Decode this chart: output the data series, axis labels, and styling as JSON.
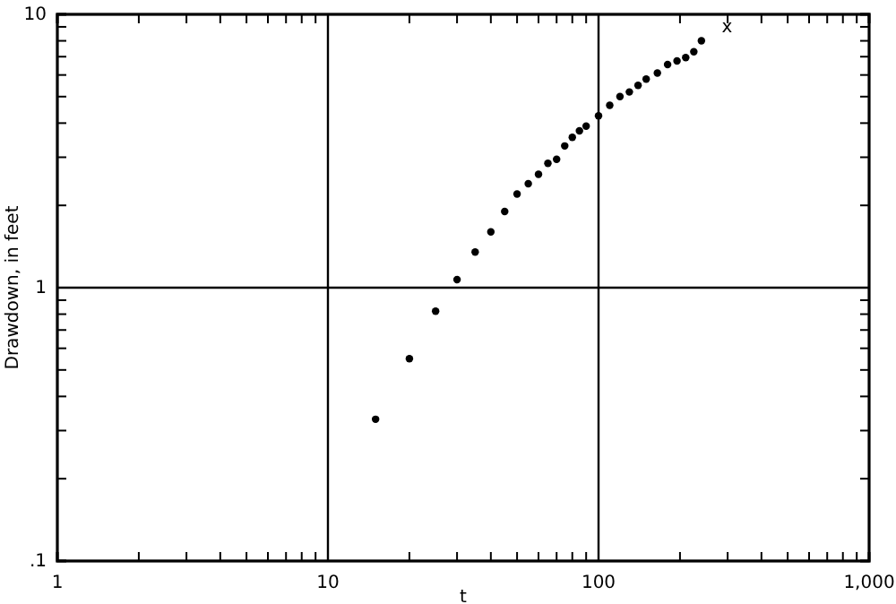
{
  "chart_data": {
    "type": "scatter",
    "xlabel": "t",
    "ylabel": "Drawdown, in feet",
    "log": "xy",
    "grid": true,
    "marker": "circle",
    "xlim": [
      1,
      1000
    ],
    "ylim": [
      0.1,
      10
    ],
    "xticks": [
      {
        "value": 1,
        "label": "1"
      },
      {
        "value": 2,
        "label": null
      },
      {
        "value": 3,
        "label": null
      },
      {
        "value": 4,
        "label": null
      },
      {
        "value": 5,
        "label": null
      },
      {
        "value": 6,
        "label": null
      },
      {
        "value": 7,
        "label": null
      },
      {
        "value": 8,
        "label": null
      },
      {
        "value": 9,
        "label": null
      },
      {
        "value": 10,
        "label": "10"
      },
      {
        "value": 20,
        "label": null
      },
      {
        "value": 30,
        "label": null
      },
      {
        "value": 40,
        "label": null
      },
      {
        "value": 50,
        "label": null
      },
      {
        "value": 60,
        "label": null
      },
      {
        "value": 70,
        "label": null
      },
      {
        "value": 80,
        "label": null
      },
      {
        "value": 90,
        "label": null
      },
      {
        "value": 100,
        "label": "100"
      },
      {
        "value": 200,
        "label": null
      },
      {
        "value": 300,
        "label": null
      },
      {
        "value": 400,
        "label": null
      },
      {
        "value": 500,
        "label": null
      },
      {
        "value": 600,
        "label": null
      },
      {
        "value": 700,
        "label": null
      },
      {
        "value": 800,
        "label": null
      },
      {
        "value": 900,
        "label": null
      },
      {
        "value": 1000,
        "label": "1,000"
      }
    ],
    "yticks": [
      {
        "value": 0.1,
        "label": ".1"
      },
      {
        "value": 0.2,
        "label": null
      },
      {
        "value": 0.3,
        "label": null
      },
      {
        "value": 0.4,
        "label": null
      },
      {
        "value": 0.5,
        "label": null
      },
      {
        "value": 0.6,
        "label": null
      },
      {
        "value": 0.7,
        "label": null
      },
      {
        "value": 0.8,
        "label": null
      },
      {
        "value": 0.9,
        "label": null
      },
      {
        "value": 1,
        "label": "1"
      },
      {
        "value": 2,
        "label": null
      },
      {
        "value": 3,
        "label": null
      },
      {
        "value": 4,
        "label": null
      },
      {
        "value": 5,
        "label": null
      },
      {
        "value": 6,
        "label": null
      },
      {
        "value": 7,
        "label": null
      },
      {
        "value": 8,
        "label": null
      },
      {
        "value": 9,
        "label": null
      },
      {
        "value": 10,
        "label": "10"
      }
    ],
    "series": [
      {
        "color": "#000000",
        "x": [
          15,
          20,
          25,
          30,
          35,
          40,
          45,
          50,
          55,
          60,
          65,
          70,
          75,
          80,
          85,
          90,
          100,
          110,
          120,
          130,
          140,
          150,
          165,
          180,
          195,
          210,
          225,
          240
        ],
        "values": [
          0.33,
          0.55,
          0.82,
          1.07,
          1.35,
          1.6,
          1.9,
          2.2,
          2.4,
          2.6,
          2.85,
          2.95,
          3.3,
          3.55,
          3.75,
          3.9,
          4.25,
          4.65,
          5.0,
          5.2,
          5.5,
          5.8,
          6.1,
          6.55,
          6.75,
          6.95,
          7.3,
          8.0
        ]
      }
    ],
    "annotations": [
      "x"
    ]
  }
}
